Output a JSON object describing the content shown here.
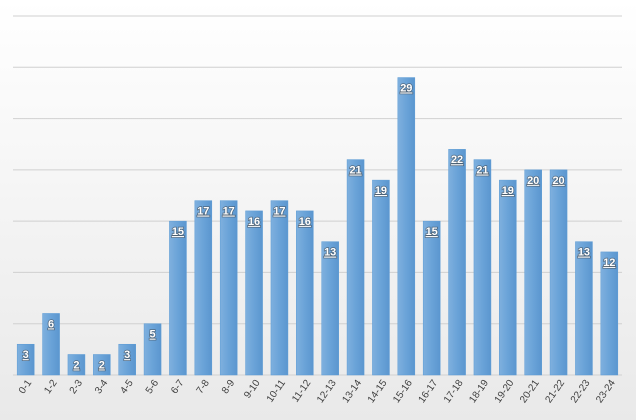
{
  "chart_data": {
    "type": "bar",
    "categories": [
      "0-1",
      "1-2",
      "2-3",
      "3-4",
      "4-5",
      "5-6",
      "6-7",
      "7-8",
      "8-9",
      "9-10",
      "10-11",
      "11-12",
      "12-13",
      "13-14",
      "14-15",
      "15-16",
      "16-17",
      "17-18",
      "18-19",
      "19-20",
      "20-21",
      "21-22",
      "22-23",
      "23-24"
    ],
    "values": [
      3,
      6,
      2,
      2,
      3,
      5,
      15,
      17,
      17,
      16,
      17,
      16,
      13,
      21,
      19,
      29,
      15,
      22,
      21,
      19,
      20,
      20,
      13,
      12
    ],
    "color": "#5b9bd5",
    "ylim": [
      0,
      35
    ],
    "yticks": [
      0,
      5,
      10,
      15,
      20,
      25,
      30,
      35
    ],
    "grid": true
  }
}
